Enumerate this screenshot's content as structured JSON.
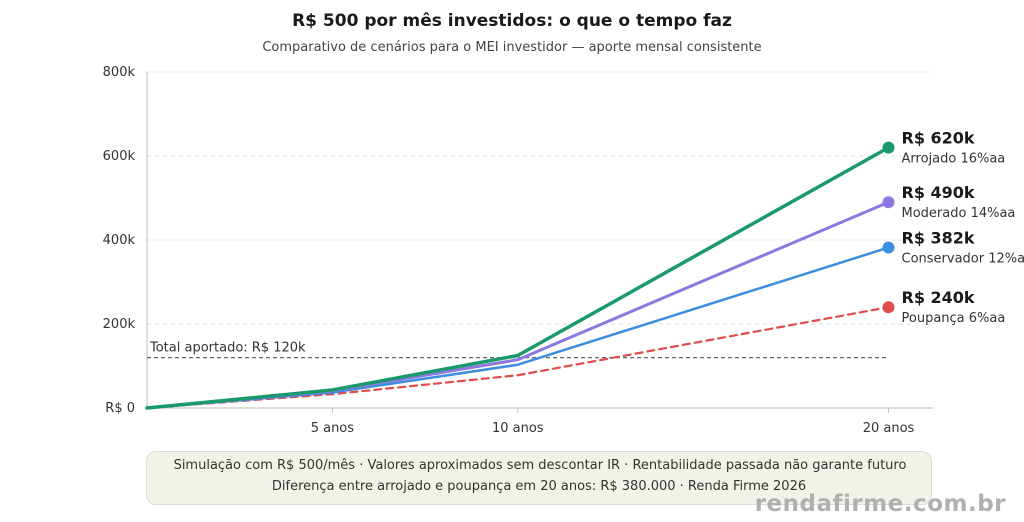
{
  "chart_data": {
    "type": "line",
    "title": "R$ 500 por mês investidos: o que o tempo faz",
    "subtitle": "Comparativo de cenários para o MEI investidor — aporte mensal consistente",
    "x_ticks": [
      "5 anos",
      "10 anos",
      "20 anos"
    ],
    "x_years": [
      0,
      5,
      10,
      20
    ],
    "y_ticks": [
      "R$ 0",
      "200k",
      "400k",
      "600k",
      "800k"
    ],
    "y_tick_values": [
      0,
      200000,
      400000,
      600000,
      800000
    ],
    "ylim": [
      0,
      800000
    ],
    "xlim": [
      0,
      21.2
    ],
    "grid": "horizontal dashed",
    "series": [
      {
        "name": "Arrojado 16%aa",
        "end_label": "R$ 620k",
        "color": "#1a9a6c",
        "dash": false,
        "width": 3.5,
        "values": [
          0,
          43000,
          125000,
          620000
        ]
      },
      {
        "name": "Moderado 14%aa",
        "end_label": "R$ 490k",
        "color": "#8c78e0",
        "dash": false,
        "width": 3,
        "values": [
          0,
          41000,
          115000,
          490000
        ]
      },
      {
        "name": "Conservador 12%aa",
        "end_label": "R$ 382k",
        "color": "#3d8ede",
        "dash": false,
        "width": 2.5,
        "values": [
          0,
          37000,
          103000,
          382000
        ]
      },
      {
        "name": "Poupança 6%aa",
        "end_label": "R$ 240k",
        "color": "#e04b4b",
        "dash": true,
        "width": 2.2,
        "values": [
          0,
          33000,
          78000,
          240000
        ]
      }
    ],
    "reference_line": {
      "label": "Total aportado: R$ 120k",
      "value": 120000,
      "color": "#666"
    }
  },
  "footer": {
    "line1": "Simulação com R$ 500/mês · Valores aproximados sem descontar IR · Rentabilidade passada não garante futuro",
    "line2": "Diferença entre arrojado e poupança em 20 anos: R$ 380.000 · Renda Firme 2026"
  },
  "watermark": "rendafirme.com.br"
}
